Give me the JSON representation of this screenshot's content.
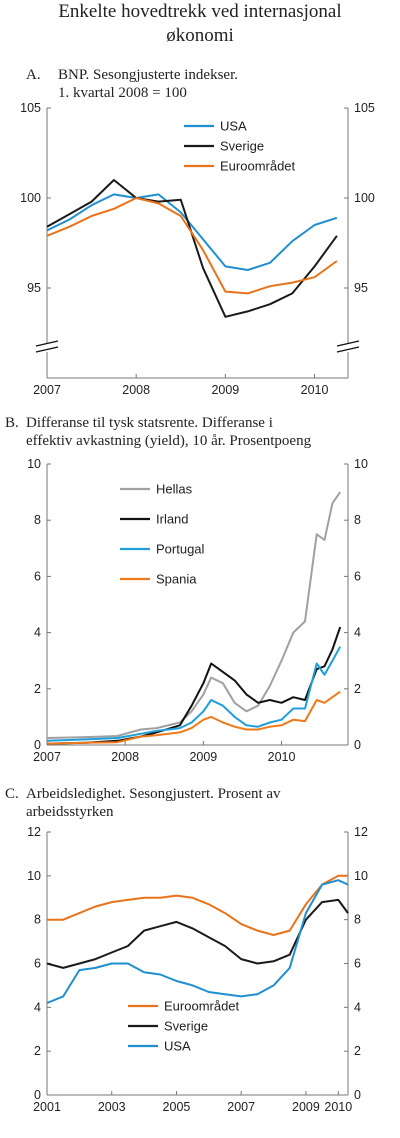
{
  "title_lines": [
    "Enkelte hovedtrekk ved internasjonal",
    "økonomi"
  ],
  "colors": {
    "usa": "#1f8fd0",
    "sverige": "#1a1a1a",
    "euro": "#e8731a",
    "hellas": "#a0a0a0",
    "irland": "#111111",
    "portugal": "#1f9ed8",
    "spania": "#ef7a1a",
    "axis": "#777777"
  },
  "chart_data": [
    {
      "type": "line",
      "label": "A.",
      "title_lines": [
        "BNP. Sesongjusterte indekser.",
        "1. kvartal 2008 = 100"
      ],
      "x_ticks": [
        "2007",
        "2008",
        "2009",
        "2010"
      ],
      "y_ticks_left": [
        "105",
        "100",
        "95"
      ],
      "y_ticks_right": [
        "105",
        "100",
        "95"
      ],
      "ylim": [
        90,
        105
      ],
      "axis_break": true,
      "x": [
        "2007Q1",
        "2007Q2",
        "2007Q3",
        "2007Q4",
        "2008Q1",
        "2008Q2",
        "2008Q3",
        "2008Q4",
        "2009Q1",
        "2009Q2",
        "2009Q3",
        "2009Q4",
        "2010Q1",
        "2010Q2",
        "2010Q3"
      ],
      "series": [
        {
          "name": "USA",
          "color_key": "usa",
          "values": [
            98.2,
            98.8,
            99.6,
            100.2,
            100.0,
            100.2,
            99.2,
            97.7,
            96.2,
            96.0,
            96.4,
            97.6,
            98.5,
            98.9,
            null
          ]
        },
        {
          "name": "Sverige",
          "color_key": "sverige",
          "values": [
            98.4,
            99.1,
            99.8,
            101.0,
            100.0,
            99.8,
            99.9,
            96.1,
            93.4,
            93.7,
            94.1,
            94.7,
            96.2,
            97.9,
            null
          ]
        },
        {
          "name": "Euroområdet",
          "color_key": "euro",
          "values": [
            97.9,
            98.4,
            99.0,
            99.4,
            100.0,
            99.7,
            99.0,
            97.1,
            94.8,
            94.7,
            95.1,
            95.3,
            95.6,
            96.5,
            null
          ]
        }
      ]
    },
    {
      "type": "line",
      "label": "B.",
      "title_lines": [
        "Differanse til tysk statsrente. Differanse i",
        "effektiv avkastning (yield), 10 år. Prosentpoeng"
      ],
      "x_ticks": [
        "2007",
        "2008",
        "2009",
        "2010"
      ],
      "y_ticks_left": [
        "10",
        "8",
        "6",
        "4",
        "2",
        "0"
      ],
      "y_ticks_right": [
        "10",
        "8",
        "6",
        "4",
        "2",
        "0"
      ],
      "ylim": [
        0,
        10
      ],
      "x": [
        2007.0,
        2007.5,
        2007.9,
        2008.2,
        2008.4,
        2008.7,
        2008.85,
        2009.0,
        2009.1,
        2009.25,
        2009.4,
        2009.55,
        2009.7,
        2009.85,
        2010.0,
        2010.15,
        2010.3,
        2010.45,
        2010.55,
        2010.65,
        2010.75
      ],
      "series": [
        {
          "name": "Hellas",
          "color_key": "hellas",
          "values": [
            0.25,
            0.28,
            0.32,
            0.55,
            0.6,
            0.8,
            1.2,
            1.8,
            2.4,
            2.2,
            1.5,
            1.2,
            1.4,
            2.1,
            3.0,
            4.0,
            4.4,
            7.5,
            7.3,
            8.6,
            9.0
          ]
        },
        {
          "name": "Irland",
          "color_key": "irland",
          "values": [
            0.05,
            0.08,
            0.15,
            0.3,
            0.45,
            0.7,
            1.4,
            2.2,
            2.9,
            2.6,
            2.3,
            1.8,
            1.5,
            1.6,
            1.5,
            1.7,
            1.6,
            2.7,
            2.8,
            3.4,
            4.2
          ]
        },
        {
          "name": "Portugal",
          "color_key": "portugal",
          "values": [
            0.15,
            0.2,
            0.25,
            0.4,
            0.5,
            0.6,
            0.8,
            1.2,
            1.6,
            1.4,
            1.0,
            0.7,
            0.65,
            0.8,
            0.9,
            1.3,
            1.3,
            2.9,
            2.5,
            3.0,
            3.5
          ]
        },
        {
          "name": "Spania",
          "color_key": "spania",
          "values": [
            0.05,
            0.08,
            0.1,
            0.3,
            0.35,
            0.45,
            0.6,
            0.9,
            1.0,
            0.8,
            0.65,
            0.55,
            0.55,
            0.65,
            0.7,
            0.9,
            0.85,
            1.6,
            1.5,
            1.7,
            1.9
          ]
        }
      ]
    },
    {
      "type": "line",
      "label": "C.",
      "title_lines": [
        "Arbeidsledighet. Sesongjustert. Prosent av",
        "arbeidsstyrken"
      ],
      "x_ticks": [
        "2001",
        "2003",
        "2005",
        "2007",
        "2009",
        "2010"
      ],
      "y_ticks_left": [
        "12",
        "10",
        "8",
        "6",
        "4",
        "2",
        "0"
      ],
      "y_ticks_right": [
        "12",
        "10",
        "8",
        "6",
        "4",
        "2",
        "0"
      ],
      "ylim": [
        0,
        12
      ],
      "x": [
        2001.0,
        2001.5,
        2002.0,
        2002.5,
        2003.0,
        2003.5,
        2004.0,
        2004.5,
        2005.0,
        2005.5,
        2006.0,
        2006.5,
        2007.0,
        2007.5,
        2008.0,
        2008.5,
        2009.0,
        2009.5,
        2010.0,
        2010.3
      ],
      "series": [
        {
          "name": "Euroområdet",
          "color_key": "euro",
          "values": [
            8.0,
            8.0,
            8.3,
            8.6,
            8.8,
            8.9,
            9.0,
            9.0,
            9.1,
            9.0,
            8.7,
            8.3,
            7.8,
            7.5,
            7.3,
            7.5,
            8.7,
            9.6,
            10.0,
            10.0
          ]
        },
        {
          "name": "Sverige",
          "color_key": "sverige",
          "values": [
            6.0,
            5.8,
            6.0,
            6.2,
            6.5,
            6.8,
            7.5,
            7.7,
            7.9,
            7.6,
            7.2,
            6.8,
            6.2,
            6.0,
            6.1,
            6.4,
            8.0,
            8.8,
            8.9,
            8.3
          ]
        },
        {
          "name": "USA",
          "color_key": "usa",
          "values": [
            4.2,
            4.5,
            5.7,
            5.8,
            6.0,
            6.0,
            5.6,
            5.5,
            5.2,
            5.0,
            4.7,
            4.6,
            4.5,
            4.6,
            5.0,
            5.8,
            8.3,
            9.6,
            9.8,
            9.6
          ]
        }
      ]
    }
  ]
}
